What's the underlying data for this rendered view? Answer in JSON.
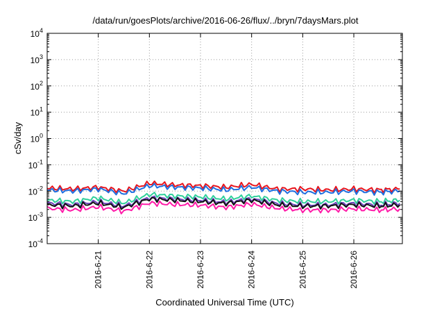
{
  "chart_data": {
    "type": "line",
    "title": "/data/run/goesPlots/archive/2016-06-26/flux/../bryn/7daysMars.plot",
    "xlabel": "Coordinated Universal Time (UTC)",
    "ylabel": "cSv/day",
    "y_scale": "log",
    "ylim": [
      "1e-4",
      "1e4"
    ],
    "xlim": [
      "2016-06-20",
      "2016-06-26"
    ],
    "x_tick_labels": [
      "2016-6-21",
      "2016-6-22",
      "2016-6-23",
      "2016-6-24",
      "2016-6-25",
      "2016-6-26"
    ],
    "y_tick_labels": [
      {
        "base": "10",
        "exp": "-4"
      },
      {
        "base": "10",
        "exp": "-3"
      },
      {
        "base": "10",
        "exp": "-2"
      },
      {
        "base": "10",
        "exp": "-1"
      },
      {
        "base": "10",
        "exp": "0"
      },
      {
        "base": "10",
        "exp": "1"
      },
      {
        "base": "10",
        "exp": "2"
      },
      {
        "base": "10",
        "exp": "3"
      },
      {
        "base": "10",
        "exp": "4"
      }
    ],
    "grid": true,
    "x": [
      "2016-06-20",
      "2016-06-20.5",
      "2016-06-21",
      "2016-06-21.5",
      "2016-06-22",
      "2016-06-22.5",
      "2016-06-23",
      "2016-06-23.5",
      "2016-06-24",
      "2016-06-24.5",
      "2016-06-25",
      "2016-06-25.5",
      "2016-06-26",
      "2016-06-26.5",
      "2016-06-26.9"
    ],
    "series": [
      {
        "color": "#e8141c",
        "values": [
          0.013,
          0.012,
          0.014,
          0.01,
          0.02,
          0.017,
          0.016,
          0.014,
          0.018,
          0.012,
          0.012,
          0.011,
          0.012,
          0.011,
          0.012
        ]
      },
      {
        "color": "#1f6fe0",
        "values": [
          0.011,
          0.01,
          0.012,
          0.008,
          0.016,
          0.014,
          0.013,
          0.011,
          0.014,
          0.01,
          0.009,
          0.009,
          0.01,
          0.009,
          0.01
        ]
      },
      {
        "color": "#2fcf9a",
        "values": [
          0.0045,
          0.004,
          0.0055,
          0.0035,
          0.0075,
          0.0065,
          0.006,
          0.005,
          0.0065,
          0.0045,
          0.004,
          0.004,
          0.0045,
          0.004,
          0.0045
        ]
      },
      {
        "color": "#6a3fb8",
        "values": [
          0.0035,
          0.003,
          0.004,
          0.0027,
          0.0055,
          0.005,
          0.0045,
          0.0038,
          0.005,
          0.0034,
          0.003,
          0.003,
          0.0034,
          0.003,
          0.0034
        ]
      },
      {
        "color": "#111111",
        "values": [
          0.003,
          0.0027,
          0.0035,
          0.0024,
          0.005,
          0.0045,
          0.004,
          0.0034,
          0.0045,
          0.003,
          0.0027,
          0.0027,
          0.003,
          0.0027,
          0.003
        ]
      },
      {
        "color": "#ff1aa8",
        "values": [
          0.0022,
          0.0019,
          0.0025,
          0.0017,
          0.0035,
          0.0031,
          0.0029,
          0.0024,
          0.0032,
          0.0022,
          0.0019,
          0.0019,
          0.0021,
          0.0019,
          0.0021
        ]
      }
    ]
  }
}
